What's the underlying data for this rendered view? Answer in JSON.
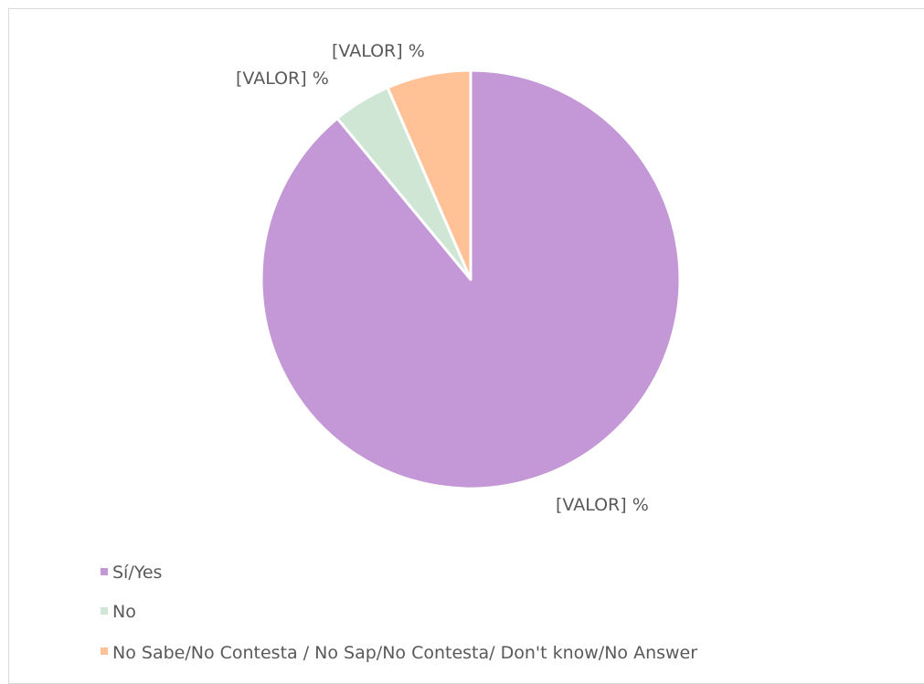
{
  "chart_data": {
    "type": "pie",
    "start_angle_deg": 0,
    "direction": "clockwise",
    "series": [
      {
        "slices": [
          {
            "label": "Sí/Yes",
            "value": 89,
            "color": "#c497d6",
            "data_label": "[VALOR] %"
          },
          {
            "label": "No",
            "value": 4.5,
            "color": "#cfe6d5",
            "data_label": "[VALOR] %"
          },
          {
            "label": "No Sabe/No Contesta / No Sap/No Contesta/ Don't know/No Answer",
            "value": 6.5,
            "color": "#ffc195",
            "data_label": "[VALOR] %"
          }
        ]
      }
    ],
    "legend": {
      "placement": "bottom-left",
      "entries": [
        "Sí/Yes",
        "No",
        "No Sabe/No Contesta / No Sap/No Contesta/ Don't know/No Answer"
      ]
    }
  }
}
